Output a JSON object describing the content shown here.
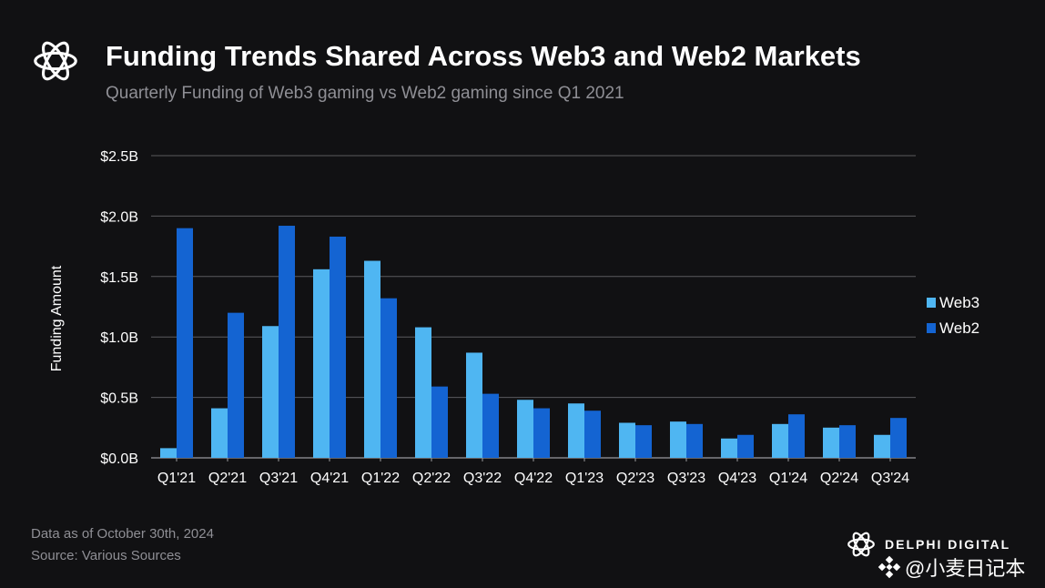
{
  "header": {
    "title": "Funding Trends Shared Across Web3 and Web2 Markets",
    "subtitle": "Quarterly Funding of Web3 gaming vs Web2 gaming since Q1 2021"
  },
  "logo": {
    "icon": "delphi-knot-icon"
  },
  "chart_data": {
    "type": "bar",
    "categories": [
      "Q1'21",
      "Q2'21",
      "Q3'21",
      "Q4'21",
      "Q1'22",
      "Q2'22",
      "Q3'22",
      "Q4'22",
      "Q1'23",
      "Q2'23",
      "Q3'23",
      "Q4'23",
      "Q1'24",
      "Q2'24",
      "Q3'24"
    ],
    "series": [
      {
        "name": "Web3",
        "color": "#4fb6f2",
        "values": [
          0.08,
          0.41,
          1.09,
          1.56,
          1.63,
          1.08,
          0.87,
          0.48,
          0.45,
          0.29,
          0.3,
          0.16,
          0.28,
          0.25,
          0.19
        ]
      },
      {
        "name": "Web2",
        "color": "#1464d2",
        "values": [
          1.9,
          1.2,
          1.92,
          1.83,
          1.32,
          0.59,
          0.53,
          0.41,
          0.39,
          0.27,
          0.28,
          0.19,
          0.36,
          0.27,
          0.33
        ]
      }
    ],
    "ylabel": "Funding Amount",
    "xlabel": "",
    "ylim": [
      0,
      2.5
    ],
    "yticks": [
      0,
      0.5,
      1.0,
      1.5,
      2.0,
      2.5
    ],
    "ytick_labels": [
      "$0.0B",
      "$0.5B",
      "$1.0B",
      "$1.5B",
      "$2.0B",
      "$2.5B"
    ],
    "grid": true,
    "legend_position": "right"
  },
  "footer": {
    "data_note": "Data as of October 30th, 2024",
    "source": "Source: Various Sources"
  },
  "brand": {
    "name": "DELPHI DIGITAL",
    "icon": "delphi-knot-icon"
  },
  "watermark": {
    "text": "@小麦日记本",
    "icon": "binance-diamond-icon"
  },
  "colors": {
    "background": "#111113",
    "grid": "#5a5a5e",
    "text": "#ffffff",
    "muted": "#8f8f95"
  }
}
